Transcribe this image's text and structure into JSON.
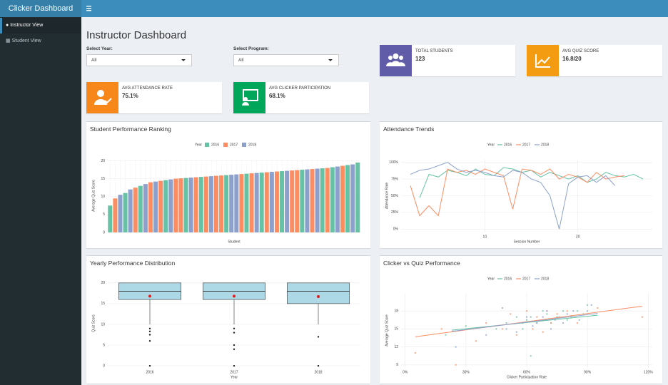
{
  "header": {
    "title": "Clicker Dashboard"
  },
  "sidebar": {
    "items": [
      "Instructor View",
      "Student View"
    ]
  },
  "page": {
    "title": "Instructor Dashboard"
  },
  "filters": [
    {
      "label": "Select Year:",
      "value": "All"
    },
    {
      "label": "Select Program:",
      "value": "All"
    }
  ],
  "kpis": [
    {
      "label": "TOTAL STUDENTS",
      "value": "123"
    },
    {
      "label": "AVG QUIZ SCORE",
      "value": "16.8/20"
    },
    {
      "label": "AVG ATTENDANCE RATE",
      "value": "75.1%"
    },
    {
      "label": "AVG CLICKER PARTICIPATION",
      "value": "68.1%"
    }
  ],
  "chart_data": [
    {
      "type": "bar",
      "title": "Student Performance Ranking",
      "x_label": "Student",
      "y_label": "Average Quiz Score",
      "legend_title": "Year",
      "series": [
        {
          "name": "2016",
          "color": "#66c2a5"
        },
        {
          "name": "2017",
          "color": "#fc8d62"
        },
        {
          "name": "2018",
          "color": "#8da0cb"
        }
      ],
      "values": [
        7.5,
        9.5,
        10.5,
        11,
        12,
        12.5,
        13,
        13.5,
        14,
        14.2,
        14.4,
        14.6,
        14.8,
        15,
        15.1,
        15.2,
        15.3,
        15.4,
        15.5,
        15.6,
        15.7,
        15.8,
        15.9,
        16,
        16.1,
        16.2,
        16.3,
        16.4,
        16.5,
        16.6,
        16.7,
        16.8,
        16.9,
        17,
        17.1,
        17.2,
        17.3,
        17.4,
        17.5,
        17.6,
        17.7,
        17.8,
        17.9,
        18,
        18.2,
        18.4,
        18.6,
        18.8,
        19,
        19.5
      ],
      "bar_colors": [
        "#66c2a5",
        "#fc8d62",
        "#8da0cb",
        "#66c2a5",
        "#8da0cb",
        "#fc8d62",
        "#66c2a5",
        "#8da0cb",
        "#fc8d62",
        "#8da0cb",
        "#fc8d62",
        "#66c2a5",
        "#8da0cb",
        "#fc8d62",
        "#fc8d62",
        "#66c2a5",
        "#8da0cb",
        "#fc8d62",
        "#66c2a5",
        "#fc8d62",
        "#8da0cb",
        "#fc8d62",
        "#fc8d62",
        "#66c2a5",
        "#8da0cb",
        "#8da0cb",
        "#fc8d62",
        "#66c2a5",
        "#fc8d62",
        "#8da0cb",
        "#66c2a5",
        "#fc8d62",
        "#8da0cb",
        "#fc8d62",
        "#66c2a5",
        "#8da0cb",
        "#fc8d62",
        "#fc8d62",
        "#66c2a5",
        "#8da0cb",
        "#fc8d62",
        "#8da0cb",
        "#66c2a5",
        "#fc8d62",
        "#66c2a5",
        "#8da0cb",
        "#fc8d62",
        "#66c2a5",
        "#8da0cb",
        "#66c2a5"
      ],
      "ylim": [
        0,
        20.5
      ],
      "yticks": [
        0,
        5,
        10,
        15,
        20
      ],
      "grid": true
    },
    {
      "type": "line",
      "title": "Attendance Trends",
      "x_label": "Session Number",
      "y_label": "Attendance Rate",
      "legend_title": "Year",
      "x": [
        2,
        3,
        4,
        5,
        6,
        7,
        8,
        9,
        10,
        11,
        12,
        13,
        14,
        15,
        16,
        17,
        18,
        19,
        20,
        21,
        22,
        23,
        24,
        25,
        26,
        27
      ],
      "series": [
        {
          "name": "2016",
          "color": "#66c2a5",
          "values": [
            null,
            47,
            82,
            78,
            88,
            85,
            80,
            90,
            82,
            80,
            92,
            90,
            85,
            88,
            78,
            85,
            80,
            75,
            80,
            70,
            75,
            85,
            80,
            78,
            82,
            75
          ]
        },
        {
          "name": "2017",
          "color": "#fc8d62",
          "values": [
            65,
            20,
            35,
            20,
            90,
            85,
            88,
            82,
            90,
            85,
            80,
            30,
            90,
            88,
            82,
            90,
            75,
            82,
            78,
            70,
            85,
            75,
            78,
            80,
            null,
            null
          ]
        },
        {
          "name": "2018",
          "color": "#8da0cb",
          "values": [
            82,
            88,
            90,
            95,
            100,
            90,
            85,
            88,
            85,
            80,
            78,
            88,
            85,
            75,
            70,
            50,
            0,
            68,
            78,
            80,
            70,
            80,
            65,
            null,
            null,
            null
          ]
        }
      ],
      "xlim": [
        1,
        28
      ],
      "xticks": [
        10,
        20
      ],
      "ylim": [
        -5,
        105
      ],
      "yticks": [
        {
          "value": 0,
          "label": "0%"
        },
        {
          "value": 25,
          "label": "25%"
        },
        {
          "value": 50,
          "label": "50%"
        },
        {
          "value": 75,
          "label": "75%"
        },
        {
          "value": 100,
          "label": "100%"
        }
      ],
      "grid": true
    },
    {
      "type": "box",
      "title": "Yearly Performance Distribution",
      "x_label": "Year",
      "y_label": "Quiz Score",
      "categories": [
        "2016",
        "2017",
        "2018"
      ],
      "box_color": "#add8e6",
      "mean_color": "#e31a1c",
      "boxes": [
        {
          "min": 10,
          "q1": 16,
          "median": 18,
          "q3": 20,
          "max": 20,
          "mean": 16.8,
          "outliers": [
            9,
            8.3,
            7.5,
            6,
            0
          ]
        },
        {
          "min": 10,
          "q1": 16,
          "median": 18,
          "q3": 20,
          "max": 20,
          "mean": 16.8,
          "outliers": [
            9,
            8,
            5,
            4,
            0
          ]
        },
        {
          "min": 10,
          "q1": 15,
          "median": 18,
          "q3": 20,
          "max": 20,
          "mean": 16.7,
          "outliers": [
            7,
            0
          ]
        }
      ],
      "ylim": [
        -0.5,
        21
      ],
      "yticks": [
        0,
        5,
        10,
        15,
        20
      ],
      "grid": true
    },
    {
      "type": "scatter",
      "title": "Clicker vs Quiz Performance",
      "x_label": "Clicker Participation Rate",
      "y_label": "Average Quiz Score",
      "legend_title": "Year",
      "series": [
        {
          "name": "2016",
          "color": "#66c2a5",
          "x": [
            20,
            30,
            45,
            50,
            55,
            58,
            60,
            62,
            65,
            68,
            70,
            72,
            75,
            78,
            80,
            82,
            85,
            88,
            90,
            62
          ],
          "values": [
            14,
            15.5,
            15,
            16,
            17,
            15,
            16.5,
            17,
            16,
            18,
            17.5,
            16,
            17,
            18,
            16.5,
            17,
            18,
            17.5,
            19,
            10.5
          ],
          "trend": {
            "x": [
              23,
              95
            ],
            "values": [
              14.8,
              17.3
            ]
          }
        },
        {
          "name": "2017",
          "color": "#fc8d62",
          "x": [
            5,
            18,
            25,
            35,
            40,
            48,
            52,
            55,
            58,
            60,
            63,
            65,
            68,
            70,
            72,
            75,
            80,
            85,
            95,
            117
          ],
          "values": [
            11,
            15,
            9,
            13,
            16,
            15,
            17.5,
            14,
            16,
            18,
            15,
            17,
            14.5,
            18,
            16,
            17.5,
            18,
            16,
            18.5,
            17
          ],
          "trend": {
            "x": [
              5,
              117
            ],
            "values": [
              13.7,
              18.8
            ]
          }
        },
        {
          "name": "2018",
          "color": "#8da0cb",
          "x": [
            25,
            40,
            50,
            55,
            58,
            60,
            63,
            65,
            68,
            70,
            72,
            74,
            76,
            78,
            80,
            83,
            86,
            90,
            92,
            48
          ],
          "values": [
            12,
            14,
            15,
            14.5,
            16,
            17,
            15.5,
            16,
            17,
            18,
            15,
            16.5,
            17,
            16,
            17.5,
            18,
            16.5,
            18,
            19,
            18.5
          ],
          "trend": {
            "x": [
              23,
              95
            ],
            "values": [
              14.6,
              17.6
            ]
          }
        }
      ],
      "xlim": [
        -2,
        122
      ],
      "xticks": [
        {
          "value": 0,
          "label": "0%"
        },
        {
          "value": 30,
          "label": "30%"
        },
        {
          "value": 60,
          "label": "60%"
        },
        {
          "value": 90,
          "label": "90%"
        },
        {
          "value": 120,
          "label": "120%"
        }
      ],
      "ylim": [
        8.5,
        21
      ],
      "yticks": [
        9,
        12,
        15,
        18
      ],
      "grid": true
    }
  ]
}
